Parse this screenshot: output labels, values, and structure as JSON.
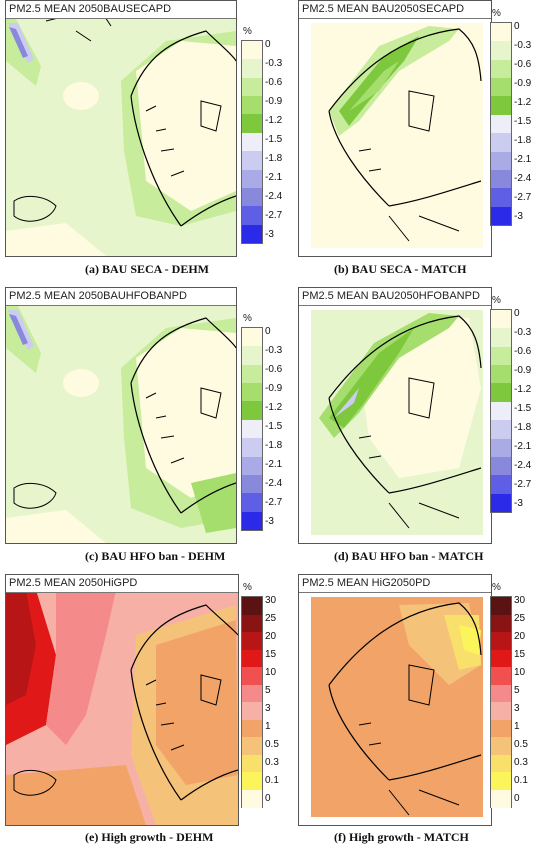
{
  "panels": [
    {
      "title": "PM2.5 MEAN 2050BAUSECAPD",
      "caption": "(a)   BAU SECA - DEHM",
      "unit": "%",
      "legend": "neg"
    },
    {
      "title": "PM2.5 MEAN BAU2050SECAPD",
      "caption": "(b)   BAU SECA - MATCH",
      "unit": "%",
      "legend": "neg"
    },
    {
      "title": "PM2.5 MEAN 2050BAUHFOBANPD",
      "caption": "(c)   BAU HFO ban - DEHM",
      "unit": "%",
      "legend": "neg"
    },
    {
      "title": "PM2.5 MEAN BAU2050HFOBANPD",
      "caption": "(d)   BAU HFO ban - MATCH",
      "unit": "%",
      "legend": "neg"
    },
    {
      "title": "PM2.5 MEAN 2050HiGPD",
      "caption": "(e)   High growth - DEHM",
      "unit": "%",
      "legend": "pos"
    },
    {
      "title": "PM2.5 MEAN HiG2050PD",
      "caption": "(f)   High growth - MATCH",
      "unit": "%",
      "legend": "pos"
    }
  ],
  "legends": {
    "neg": {
      "labels": [
        "0",
        "-0.3",
        "-0.6",
        "-0.9",
        "-1.2",
        "-1.5",
        "-1.8",
        "-2.1",
        "-2.4",
        "-2.7",
        "-3"
      ],
      "colors": [
        "#fffbe0",
        "#e6f5cc",
        "#c6ec9c",
        "#a6de6e",
        "#7dc83c",
        "#eeeef8",
        "#ccccf0",
        "#aaaae6",
        "#8888dc",
        "#5f5fe6",
        "#2a2ae8"
      ]
    },
    "pos": {
      "labels": [
        "30",
        "25",
        "20",
        "15",
        "10",
        "5",
        "3",
        "1",
        "0.5",
        "0.3",
        "0.1",
        "0"
      ],
      "colors": [
        "#5a1212",
        "#8a1414",
        "#b81616",
        "#e01818",
        "#f05050",
        "#f58a8a",
        "#f7b0a6",
        "#f2a468",
        "#f5c27a",
        "#f8e06a",
        "#fbf45a",
        "#fffbe0"
      ]
    }
  }
}
